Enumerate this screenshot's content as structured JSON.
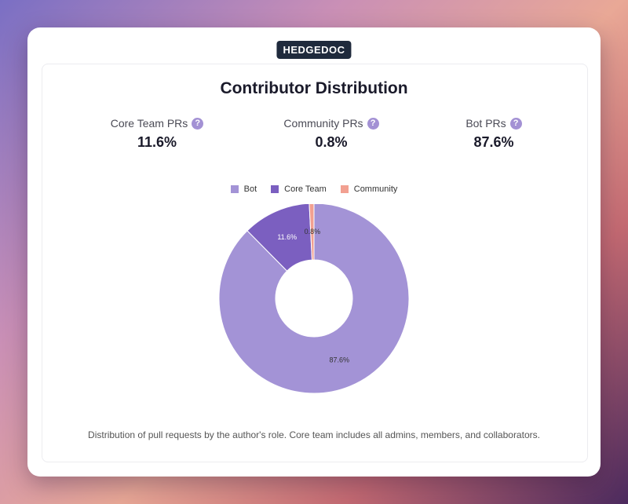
{
  "brand": "HEDGEDOC",
  "title": "Contributor Distribution",
  "stats": [
    {
      "label": "Core Team PRs",
      "value": "11.6%"
    },
    {
      "label": "Community PRs",
      "value": "0.8%"
    },
    {
      "label": "Bot PRs",
      "value": "87.6%"
    }
  ],
  "help_glyph": "?",
  "colors": {
    "bot": "#a393d6",
    "core": "#7b5fc0",
    "community": "#f2a091",
    "help": "#a391d4"
  },
  "chart_data": {
    "type": "pie",
    "donut": true,
    "legend": "top",
    "slices": [
      {
        "name": "Bot",
        "value": 87.6,
        "label": "87.6%",
        "color": "#a393d6"
      },
      {
        "name": "Core Team",
        "value": 11.6,
        "label": "11.6%",
        "color": "#7b5fc0"
      },
      {
        "name": "Community",
        "value": 0.8,
        "label": "0.8%",
        "color": "#f2a091"
      }
    ]
  },
  "caption": "Distribution of pull requests by the author's role. Core team includes all admins, members, and collaborators."
}
